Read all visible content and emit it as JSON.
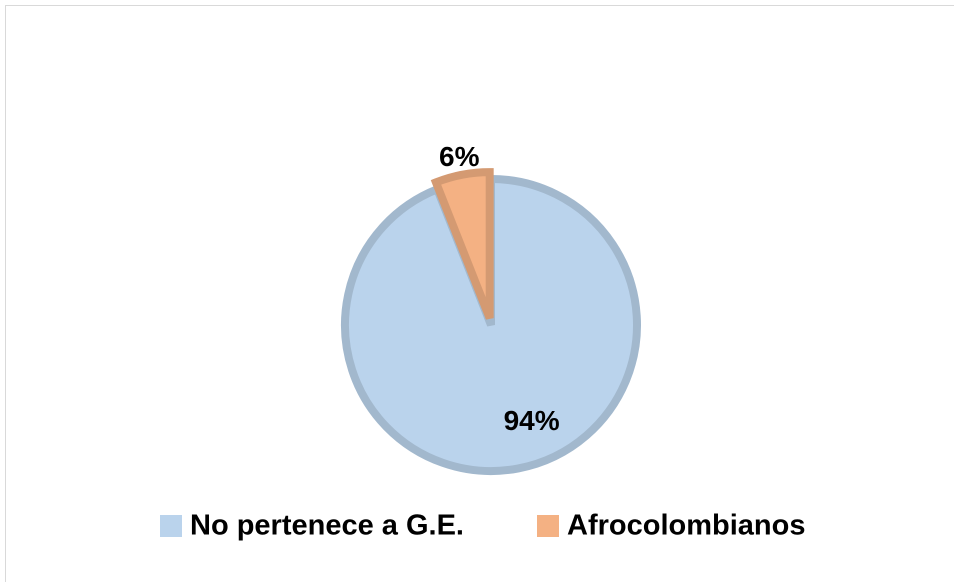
{
  "chart_data": {
    "type": "pie",
    "categories": [
      "No pertenece a G.E.",
      "Afrocolombianos"
    ],
    "values": [
      94,
      6
    ],
    "value_labels": [
      "94%",
      "6%"
    ],
    "colors": [
      "#bad3ec",
      "#f4b183"
    ],
    "legend": "bottom"
  }
}
